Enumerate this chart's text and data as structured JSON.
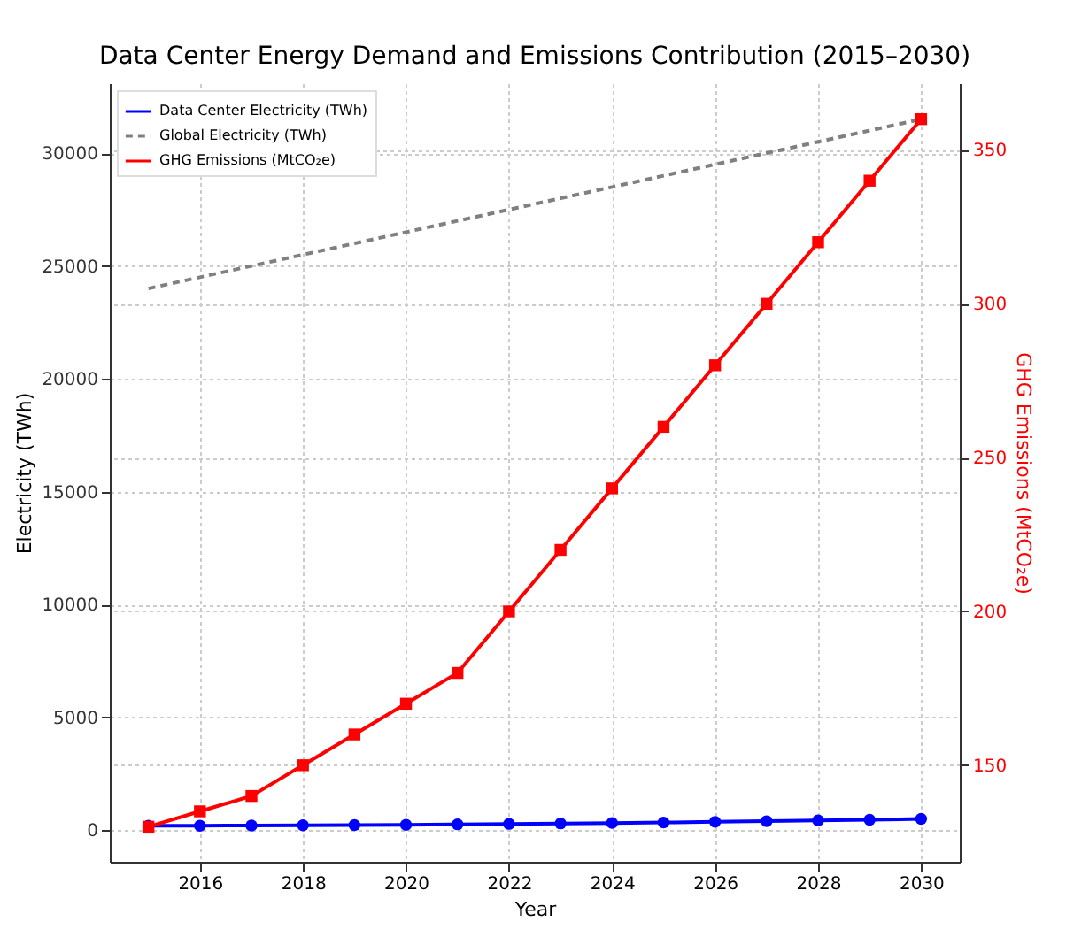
{
  "chart_data": {
    "type": "line",
    "title": "Data Center Energy Demand and Emissions Contribution (2015–2030)",
    "xlabel": "Year",
    "ylabel": "Electricity (TWh)",
    "y2label": "GHG Emissions (MtCO₂e)",
    "x": [
      2015,
      2016,
      2017,
      2018,
      2019,
      2020,
      2021,
      2022,
      2023,
      2024,
      2025,
      2026,
      2027,
      2028,
      2029,
      2030
    ],
    "series": [
      {
        "name": "Data Center Electricity (TWh)",
        "color": "#0000ff",
        "marker": "circle",
        "line_style": "solid",
        "values": [
          200,
          200,
          210,
          220,
          230,
          240,
          260,
          280,
          300,
          320,
          340,
          370,
          400,
          430,
          460,
          500
        ]
      },
      {
        "name": "Global Electricity (TWh)",
        "color": "#808080",
        "marker": "none",
        "line_style": "dashed",
        "values": [
          24000,
          24500,
          25000,
          25500,
          26000,
          26500,
          27000,
          27500,
          28000,
          28500,
          29000,
          29500,
          30000,
          30500,
          31000,
          31500
        ]
      },
      {
        "name": "GHG Emissions (MtCO₂e)",
        "color": "#ff0000",
        "marker": "square",
        "line_style": "solid",
        "axis": "y2",
        "values": [
          130,
          135,
          140,
          150,
          160,
          170,
          180,
          200,
          220,
          240,
          260,
          280,
          300,
          320,
          340,
          360
        ]
      }
    ],
    "xlim": [
      2014.25,
      2030.75
    ],
    "xticks": [
      2016,
      2018,
      2020,
      2022,
      2024,
      2026,
      2028,
      2030
    ],
    "ylim": [
      -1400,
      33100
    ],
    "yticks": [
      0,
      5000,
      10000,
      15000,
      20000,
      25000,
      30000
    ],
    "y2lim": [
      118.6,
      371.7
    ],
    "y2ticks": [
      150,
      200,
      250,
      300,
      350
    ],
    "grid": true,
    "legend": "top left"
  }
}
